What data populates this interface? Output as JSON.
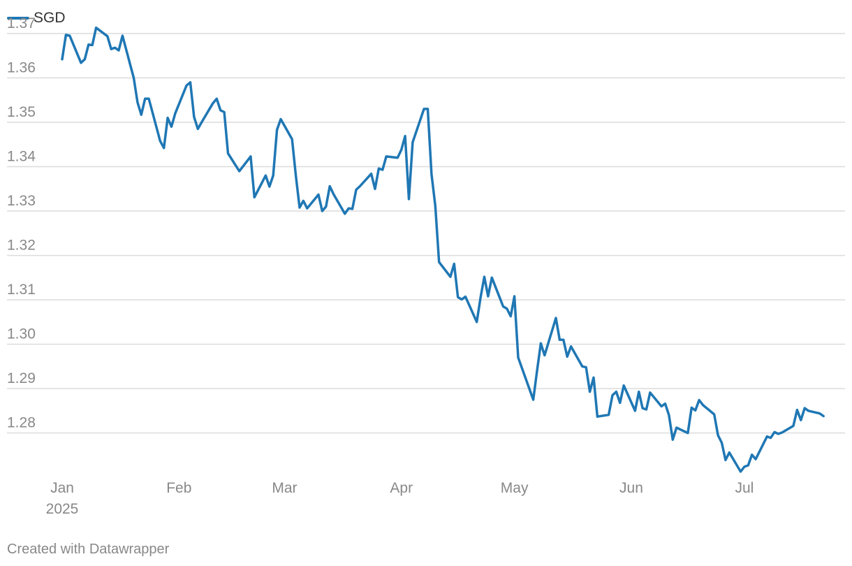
{
  "legend": {
    "label": "SGD"
  },
  "footer": {
    "credit": "Created with Datawrapper"
  },
  "colors": {
    "series": "#1f77b4",
    "grid": "#dcdcdc",
    "tick_text": "#888888"
  },
  "chart_data": {
    "type": "line",
    "title": "",
    "xlabel": "",
    "ylabel": "",
    "ylim": [
      1.2705,
      1.3744
    ],
    "yticks": [
      1.37,
      1.36,
      1.35,
      1.34,
      1.33,
      1.32,
      1.31,
      1.3,
      1.29,
      1.28
    ],
    "ytick_labels": [
      "1.37",
      "1.36",
      "1.35",
      "1.34",
      "1.33",
      "1.32",
      "1.31",
      "1.30",
      "1.29",
      "1.28"
    ],
    "grid": true,
    "legend_position": "top-left",
    "xticks": [
      {
        "date": "2025-01-01",
        "label": "Jan",
        "sublabel": "2025"
      },
      {
        "date": "2025-02-01",
        "label": "Feb"
      },
      {
        "date": "2025-03-01",
        "label": "Mar"
      },
      {
        "date": "2025-04-01",
        "label": "Apr"
      },
      {
        "date": "2025-05-01",
        "label": "May"
      },
      {
        "date": "2025-06-01",
        "label": "Jun"
      },
      {
        "date": "2025-07-01",
        "label": "Jul"
      }
    ],
    "x_range": [
      "2025-01-01",
      "2025-07-24"
    ],
    "series": [
      {
        "name": "SGD",
        "points": [
          [
            "2025-01-01",
            1.3642
          ],
          [
            "2025-01-02",
            1.3697
          ],
          [
            "2025-01-03",
            1.3695
          ],
          [
            "2025-01-06",
            1.3634
          ],
          [
            "2025-01-07",
            1.3642
          ],
          [
            "2025-01-08",
            1.3675
          ],
          [
            "2025-01-09",
            1.3674
          ],
          [
            "2025-01-10",
            1.3713
          ],
          [
            "2025-01-13",
            1.3694
          ],
          [
            "2025-01-14",
            1.3665
          ],
          [
            "2025-01-15",
            1.3668
          ],
          [
            "2025-01-16",
            1.3662
          ],
          [
            "2025-01-17",
            1.3695
          ],
          [
            "2025-01-20",
            1.36
          ],
          [
            "2025-01-21",
            1.3545
          ],
          [
            "2025-01-22",
            1.3517
          ],
          [
            "2025-01-23",
            1.3553
          ],
          [
            "2025-01-24",
            1.3553
          ],
          [
            "2025-01-27",
            1.3458
          ],
          [
            "2025-01-28",
            1.3442
          ],
          [
            "2025-01-29",
            1.351
          ],
          [
            "2025-01-30",
            1.349
          ],
          [
            "2025-01-31",
            1.352
          ],
          [
            "2025-02-03",
            1.3583
          ],
          [
            "2025-02-04",
            1.359
          ],
          [
            "2025-02-05",
            1.3512
          ],
          [
            "2025-02-06",
            1.3485
          ],
          [
            "2025-02-07",
            1.35
          ],
          [
            "2025-02-10",
            1.3543
          ],
          [
            "2025-02-11",
            1.3553
          ],
          [
            "2025-02-12",
            1.3527
          ],
          [
            "2025-02-13",
            1.3523
          ],
          [
            "2025-02-14",
            1.343
          ],
          [
            "2025-02-17",
            1.339
          ],
          [
            "2025-02-20",
            1.3423
          ],
          [
            "2025-02-21",
            1.3331
          ],
          [
            "2025-02-24",
            1.338
          ],
          [
            "2025-02-25",
            1.3355
          ],
          [
            "2025-02-26",
            1.338
          ],
          [
            "2025-02-27",
            1.3483
          ],
          [
            "2025-02-28",
            1.3507
          ],
          [
            "2025-03-03",
            1.3462
          ],
          [
            "2025-03-04",
            1.338
          ],
          [
            "2025-03-05",
            1.3308
          ],
          [
            "2025-03-06",
            1.3323
          ],
          [
            "2025-03-07",
            1.3306
          ],
          [
            "2025-03-10",
            1.3337
          ],
          [
            "2025-03-11",
            1.33
          ],
          [
            "2025-03-12",
            1.331
          ],
          [
            "2025-03-13",
            1.3356
          ],
          [
            "2025-03-14",
            1.3338
          ],
          [
            "2025-03-17",
            1.3294
          ],
          [
            "2025-03-18",
            1.3306
          ],
          [
            "2025-03-19",
            1.3305
          ],
          [
            "2025-03-20",
            1.3348
          ],
          [
            "2025-03-21",
            1.3356
          ],
          [
            "2025-03-24",
            1.3384
          ],
          [
            "2025-03-25",
            1.335
          ],
          [
            "2025-03-26",
            1.3396
          ],
          [
            "2025-03-27",
            1.3393
          ],
          [
            "2025-03-28",
            1.3423
          ],
          [
            "2025-03-31",
            1.342
          ],
          [
            "2025-04-01",
            1.3438
          ],
          [
            "2025-04-02",
            1.3469
          ],
          [
            "2025-04-03",
            1.3327
          ],
          [
            "2025-04-04",
            1.3455
          ],
          [
            "2025-04-07",
            1.353
          ],
          [
            "2025-04-08",
            1.353
          ],
          [
            "2025-04-09",
            1.3383
          ],
          [
            "2025-04-10",
            1.3312
          ],
          [
            "2025-04-11",
            1.3185
          ],
          [
            "2025-04-14",
            1.3152
          ],
          [
            "2025-04-15",
            1.3181
          ],
          [
            "2025-04-16",
            1.3106
          ],
          [
            "2025-04-17",
            1.3101
          ],
          [
            "2025-04-18",
            1.3107
          ],
          [
            "2025-04-21",
            1.305
          ],
          [
            "2025-04-22",
            1.3105
          ],
          [
            "2025-04-23",
            1.3152
          ],
          [
            "2025-04-24",
            1.3108
          ],
          [
            "2025-04-25",
            1.315
          ],
          [
            "2025-04-28",
            1.3085
          ],
          [
            "2025-04-29",
            1.308
          ],
          [
            "2025-04-30",
            1.3063
          ],
          [
            "2025-05-01",
            1.3108
          ],
          [
            "2025-05-02",
            1.297
          ],
          [
            "2025-05-06",
            1.2875
          ],
          [
            "2025-05-07",
            1.294
          ],
          [
            "2025-05-08",
            1.3002
          ],
          [
            "2025-05-09",
            1.2975
          ],
          [
            "2025-05-12",
            1.3059
          ],
          [
            "2025-05-13",
            1.301
          ],
          [
            "2025-05-14",
            1.301
          ],
          [
            "2025-05-15",
            1.2972
          ],
          [
            "2025-05-16",
            1.2995
          ],
          [
            "2025-05-19",
            1.295
          ],
          [
            "2025-05-20",
            1.2948
          ],
          [
            "2025-05-21",
            1.2893
          ],
          [
            "2025-05-22",
            1.2925
          ],
          [
            "2025-05-23",
            1.2837
          ],
          [
            "2025-05-26",
            1.2841
          ],
          [
            "2025-05-27",
            1.2885
          ],
          [
            "2025-05-28",
            1.2893
          ],
          [
            "2025-05-29",
            1.2868
          ],
          [
            "2025-05-30",
            1.2907
          ],
          [
            "2025-06-02",
            1.285
          ],
          [
            "2025-06-03",
            1.2893
          ],
          [
            "2025-06-04",
            1.2856
          ],
          [
            "2025-06-05",
            1.2853
          ],
          [
            "2025-06-06",
            1.2891
          ],
          [
            "2025-06-09",
            1.286
          ],
          [
            "2025-06-10",
            1.2866
          ],
          [
            "2025-06-11",
            1.284
          ],
          [
            "2025-06-12",
            1.2785
          ],
          [
            "2025-06-13",
            1.2812
          ],
          [
            "2025-06-16",
            1.28
          ],
          [
            "2025-06-17",
            1.2857
          ],
          [
            "2025-06-18",
            1.2851
          ],
          [
            "2025-06-19",
            1.2874
          ],
          [
            "2025-06-20",
            1.2863
          ],
          [
            "2025-06-23",
            1.2842
          ],
          [
            "2025-06-24",
            1.2795
          ],
          [
            "2025-06-25",
            1.2778
          ],
          [
            "2025-06-26",
            1.2739
          ],
          [
            "2025-06-27",
            1.2756
          ],
          [
            "2025-06-30",
            1.2713
          ],
          [
            "2025-07-01",
            1.2724
          ],
          [
            "2025-07-02",
            1.2727
          ],
          [
            "2025-07-03",
            1.2751
          ],
          [
            "2025-07-04",
            1.2741
          ],
          [
            "2025-07-07",
            1.2792
          ],
          [
            "2025-07-08",
            1.2789
          ],
          [
            "2025-07-09",
            1.2802
          ],
          [
            "2025-07-10",
            1.2798
          ],
          [
            "2025-07-11",
            1.2801
          ],
          [
            "2025-07-14",
            1.2816
          ],
          [
            "2025-07-15",
            1.2852
          ],
          [
            "2025-07-16",
            1.2829
          ],
          [
            "2025-07-17",
            1.2856
          ],
          [
            "2025-07-18",
            1.285
          ],
          [
            "2025-07-21",
            1.2844
          ],
          [
            "2025-07-22",
            1.2838
          ]
        ]
      }
    ]
  }
}
